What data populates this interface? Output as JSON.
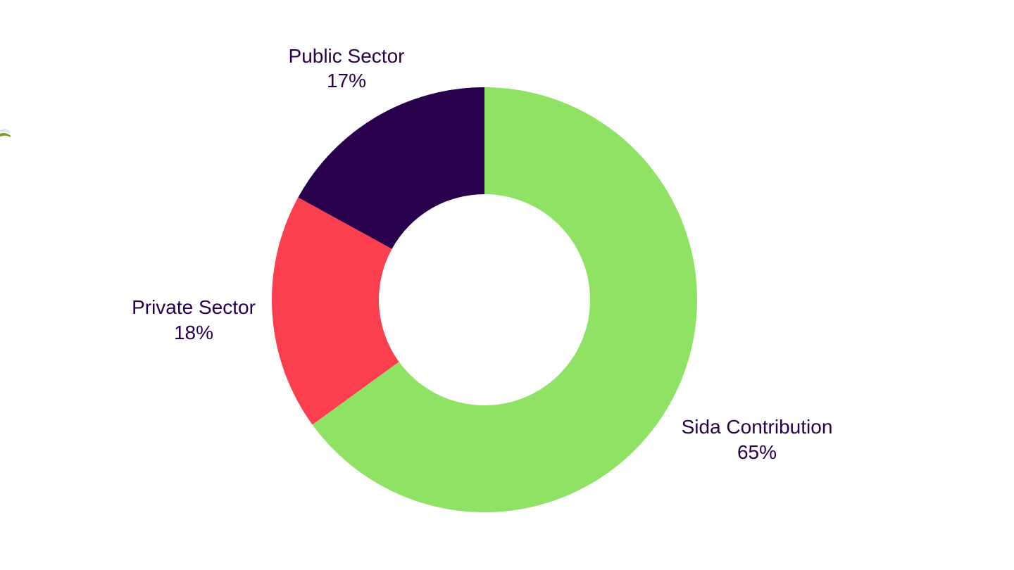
{
  "chart_data": {
    "type": "pie",
    "variant": "donut",
    "title": "",
    "slices": [
      {
        "label": "Sida Contribution",
        "percent_label": "65%",
        "value": 65,
        "color": "#90e264"
      },
      {
        "label": "Private Sector",
        "percent_label": "18%",
        "value": 18,
        "color": "#fc3f4f"
      },
      {
        "label": "Public Sector",
        "percent_label": "17%",
        "value": 17,
        "color": "#28004b"
      }
    ],
    "start_angle_deg": 0,
    "direction": "clockwise",
    "label_color": "#28004b",
    "legend": "none"
  }
}
